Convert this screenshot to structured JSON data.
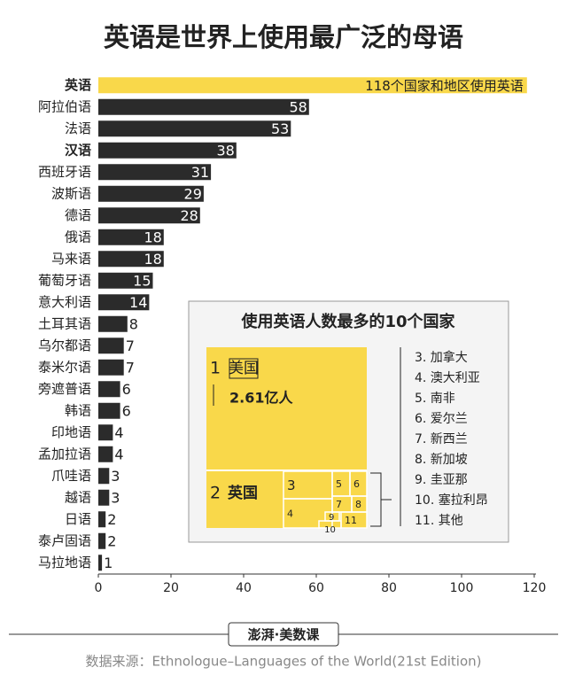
{
  "chart_data": {
    "type": "bar",
    "title": "英语是世界上使用最广泛的母语",
    "categories": [
      "英语",
      "阿拉伯语",
      "法语",
      "汉语",
      "西班牙语",
      "波斯语",
      "德语",
      "俄语",
      "马来语",
      "葡萄牙语",
      "意大利语",
      "土耳其语",
      "乌尔都语",
      "泰米尔语",
      "旁遮普语",
      "韩语",
      "印地语",
      "孟加拉语",
      "爪哇语",
      "越语",
      "日语",
      "泰卢固语",
      "马拉地语"
    ],
    "values": [
      118,
      58,
      53,
      38,
      31,
      29,
      28,
      18,
      18,
      15,
      14,
      8,
      7,
      7,
      6,
      6,
      4,
      4,
      3,
      3,
      2,
      2,
      1
    ],
    "value_labels": [
      "118个国家和地区使用英语",
      "58",
      "53",
      "38",
      "31",
      "29",
      "28",
      "18",
      "18",
      "15",
      "14",
      "8",
      "7",
      "7",
      "6",
      "6",
      "4",
      "4",
      "3",
      "3",
      "2",
      "2",
      "1"
    ],
    "highlight_categories": [
      "英语",
      "汉语"
    ],
    "colors": {
      "highlight": "#f9d84a",
      "default": "#2b2b2b"
    },
    "xlim": [
      0,
      120
    ],
    "xticks": [
      0,
      20,
      40,
      60,
      80,
      100,
      120
    ]
  },
  "inset": {
    "title": "使用英语人数最多的10个国家",
    "first_rank": "1",
    "first_name": "美国",
    "first_population": "2.61亿人",
    "second_rank": "2",
    "second_name": "英国",
    "cells": [
      "3",
      "4",
      "5",
      "6",
      "7",
      "8",
      "9",
      "10",
      "11"
    ],
    "list": [
      "3. 加拿大",
      "4. 澳大利亚",
      "5. 南非",
      "6. 爱尔兰",
      "7. 新西兰",
      "8. 新加坡",
      "9. 圭亚那",
      "10. 塞拉利昂",
      "11. 其他"
    ]
  },
  "footer": {
    "logo": "澎湃·美数课",
    "source": "数据来源：Ethnologue–Languages of the World(21st Edition)"
  }
}
